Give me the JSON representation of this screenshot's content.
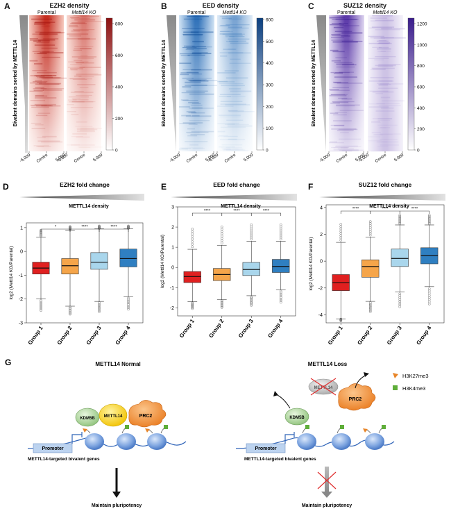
{
  "panels": {
    "A": {
      "letter": "A",
      "title": "EZH2 density",
      "col1": "Parental",
      "col2": "Mettl14 KO",
      "ylabel": "Bivalent domains sorted by METTL14",
      "ticks": [
        "-5,000",
        "Centre",
        "5,000"
      ],
      "cbar": [
        "800",
        "600",
        "400",
        "200",
        "0"
      ],
      "color": "#b81c1c"
    },
    "B": {
      "letter": "B",
      "title": "EED density",
      "col1": "Parental",
      "col2": "Mettl14 KO",
      "ylabel": "Bivalent domains sorted by METTL14",
      "ticks": [
        "-5,000",
        "Centre",
        "5,000"
      ],
      "cbar": [
        "600",
        "500",
        "400",
        "300",
        "200",
        "100",
        "0"
      ],
      "color": "#1f5fa8"
    },
    "C": {
      "letter": "C",
      "title": "SUZ12 density",
      "col1": "Parental",
      "col2": "Mettl14 KO",
      "ylabel": "Bivalent domains sorted by METTL14",
      "ticks": [
        "-5,000",
        "Centre",
        "5,000"
      ],
      "cbar": [
        "1200",
        "1000",
        "800",
        "600",
        "400",
        "200",
        "0"
      ],
      "color": "#4b2aa0"
    },
    "D": {
      "letter": "D",
      "title": "EZH2 fold change",
      "density": "METTL14 density",
      "ylabel": "log2 (Mettl14 KO/Parental)",
      "groups": [
        "Group 1",
        "Group 2",
        "Group 3",
        "Group 4"
      ],
      "sig": [
        "*",
        "****",
        "****"
      ],
      "yticks": [
        "1",
        "0",
        "-1",
        "-2",
        "-3"
      ]
    },
    "E": {
      "letter": "E",
      "title": "EED fold change",
      "density": "METTL14 density",
      "ylabel": "log2 (Mettl14 KO/Parental)",
      "groups": [
        "Group 1",
        "Group 2",
        "Group 3",
        "Group 4"
      ],
      "sig": [
        "****",
        "****",
        "****"
      ],
      "yticks": [
        "3",
        "2",
        "1",
        "0",
        "-1",
        "-2"
      ]
    },
    "F": {
      "letter": "F",
      "title": "SUZ12 fold change",
      "density": "METTL14 density",
      "ylabel": "log2 (Mettl14 KO/Parental)",
      "groups": [
        "Group 1",
        "Group 2",
        "Group 3",
        "Group 4"
      ],
      "sig": [
        "****",
        "****",
        "****"
      ],
      "yticks": [
        "4",
        "2",
        "0",
        "-2",
        "-4"
      ]
    }
  },
  "chart_data": [
    {
      "type": "box",
      "title": "EZH2 fold change",
      "xlabel": "",
      "ylabel": "log2 (Mettl14 KO/Parental)",
      "ylim": [
        -3,
        1.2
      ],
      "categories": [
        "Group 1",
        "Group 2",
        "Group 3",
        "Group 4"
      ],
      "boxes": [
        {
          "q1": -0.95,
          "median": -0.7,
          "q3": -0.45,
          "whislo": -2.0,
          "whishi": 0.6
        },
        {
          "q1": -0.95,
          "median": -0.6,
          "q3": -0.3,
          "whislo": -2.3,
          "whishi": 0.9
        },
        {
          "q1": -0.75,
          "median": -0.45,
          "q3": -0.05,
          "whislo": -2.1,
          "whishi": 0.95
        },
        {
          "q1": -0.65,
          "median": -0.3,
          "q3": 0.1,
          "whislo": -1.9,
          "whishi": 0.95
        }
      ],
      "colors": [
        "#e02020",
        "#f5a54a",
        "#a9d6ec",
        "#2f7fc1"
      ]
    },
    {
      "type": "box",
      "title": "EED fold change",
      "xlabel": "",
      "ylabel": "log2 (Mettl14 KO/Parental)",
      "ylim": [
        -2.4,
        3
      ],
      "categories": [
        "Group 1",
        "Group 2",
        "Group 3",
        "Group 4"
      ],
      "boxes": [
        {
          "q1": -0.75,
          "median": -0.45,
          "q3": -0.2,
          "whislo": -1.7,
          "whishi": 0.9
        },
        {
          "q1": -0.65,
          "median": -0.35,
          "q3": -0.05,
          "whislo": -1.6,
          "whishi": 1.1
        },
        {
          "q1": -0.4,
          "median": -0.1,
          "q3": 0.25,
          "whislo": -1.4,
          "whishi": 1.3
        },
        {
          "q1": -0.25,
          "median": 0.05,
          "q3": 0.4,
          "whislo": -1.1,
          "whishi": 1.3
        }
      ],
      "colors": [
        "#e02020",
        "#f5a54a",
        "#a9d6ec",
        "#2f7fc1"
      ]
    },
    {
      "type": "box",
      "title": "SUZ12 fold change",
      "xlabel": "",
      "ylabel": "log2 (Mettl14 KO/Parental)",
      "ylim": [
        -4.6,
        4.2
      ],
      "categories": [
        "Group 1",
        "Group 2",
        "Group 3",
        "Group 4"
      ],
      "boxes": [
        {
          "q1": -2.2,
          "median": -1.6,
          "q3": -1.0,
          "whislo": -4.3,
          "whishi": 1.4
        },
        {
          "q1": -1.2,
          "median": -0.4,
          "q3": 0.1,
          "whislo": -3.0,
          "whishi": 1.8
        },
        {
          "q1": -0.4,
          "median": 0.2,
          "q3": 0.9,
          "whislo": -2.3,
          "whishi": 2.7
        },
        {
          "q1": -0.2,
          "median": 0.4,
          "q3": 1.0,
          "whislo": -1.9,
          "whishi": 2.7
        }
      ],
      "colors": [
        "#e02020",
        "#f5a54a",
        "#a9d6ec",
        "#2f7fc1"
      ]
    }
  ],
  "schematic": {
    "letter": "G",
    "normal": {
      "title": "METTL14 Normal",
      "kdm5b": "KDM5B",
      "mettl14": "METTL14",
      "prc2": "PRC2",
      "promoter": "Promoter",
      "genes": "METTL14-targeted bivalent genes",
      "outcome": "Maintain pluripotency"
    },
    "loss": {
      "title": "METTL14 Loss",
      "mettl14": "METTL14",
      "prc2": "PRC2",
      "kdm5b": "KDM5B",
      "promoter": "Promoter",
      "genes": "METTL14-targeted bivalent genes",
      "outcome": "Maintain pluripotency"
    },
    "legend": {
      "h3k27": "H3K27me3",
      "h3k4": "H3K4me3",
      "h3k27_color": "#e8862a",
      "h3k4_color": "#5fae3a"
    }
  }
}
